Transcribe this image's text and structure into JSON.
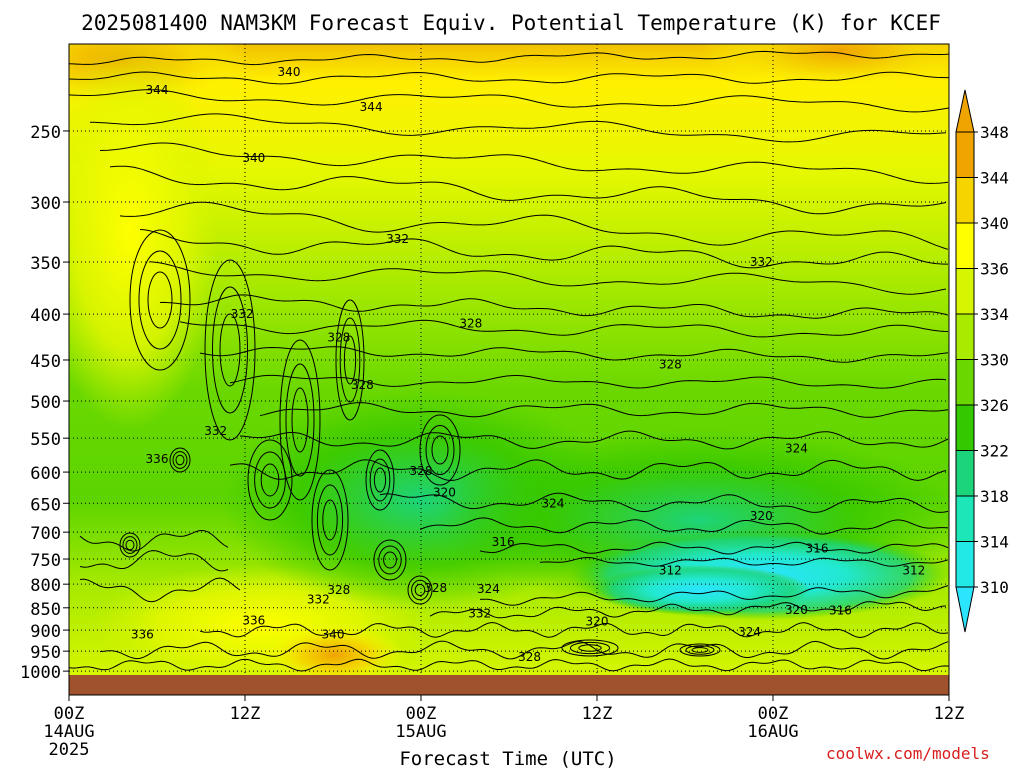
{
  "chart_data": {
    "type": "heatmap",
    "title": "2025081400 NAM3KM Forecast Equiv. Potential Temperature (K) for KCEF",
    "xlabel": "Forecast Time (UTC)",
    "ylabel": "",
    "x_ticks": [
      {
        "hour": 0,
        "label": "00Z",
        "sub": "14AUG",
        "sub2": "2025"
      },
      {
        "hour": 12,
        "label": "12Z",
        "sub": "",
        "sub2": ""
      },
      {
        "hour": 24,
        "label": "00Z",
        "sub": "15AUG",
        "sub2": ""
      },
      {
        "hour": 36,
        "label": "12Z",
        "sub": "",
        "sub2": ""
      },
      {
        "hour": 48,
        "label": "00Z",
        "sub": "16AUG",
        "sub2": ""
      },
      {
        "hour": 60,
        "label": "12Z",
        "sub": "",
        "sub2": ""
      }
    ],
    "y_ticks": [
      "250",
      "300",
      "350",
      "400",
      "450",
      "500",
      "550",
      "600",
      "650",
      "700",
      "750",
      "800",
      "850",
      "900",
      "950",
      "1000"
    ],
    "y_values": [
      250,
      300,
      350,
      400,
      450,
      500,
      550,
      600,
      650,
      700,
      750,
      800,
      850,
      900,
      950,
      1000
    ],
    "xlim": [
      0,
      60
    ],
    "ylim": [
      1010,
      200
    ],
    "colorbar": {
      "labels": [
        "348",
        "344",
        "340",
        "336",
        "334",
        "330",
        "326",
        "322",
        "318",
        "314",
        "310"
      ],
      "colors": [
        "#f0a400",
        "#f5d400",
        "#ffff00",
        "#d6f500",
        "#a8ea00",
        "#6ad800",
        "#34c800",
        "#1cd47a",
        "#1de6b8",
        "#22e8e6",
        "#2be5ff"
      ]
    },
    "surface_color": "#a0522d",
    "contour_labels": [
      {
        "t": "344",
        "x": 6.0,
        "p": 225
      },
      {
        "t": "340",
        "x": 15.0,
        "p": 215
      },
      {
        "t": "344",
        "x": 20.6,
        "p": 235
      },
      {
        "t": "340",
        "x": 12.6,
        "p": 268
      },
      {
        "t": "332",
        "x": 22.4,
        "p": 330
      },
      {
        "t": "332",
        "x": 47.2,
        "p": 350
      },
      {
        "t": "332",
        "x": 11.8,
        "p": 400
      },
      {
        "t": "328",
        "x": 18.4,
        "p": 425
      },
      {
        "t": "328",
        "x": 27.4,
        "p": 410
      },
      {
        "t": "328",
        "x": 41.0,
        "p": 455
      },
      {
        "t": "328",
        "x": 20.0,
        "p": 480
      },
      {
        "t": "332",
        "x": 10.0,
        "p": 540
      },
      {
        "t": "336",
        "x": 6.0,
        "p": 580
      },
      {
        "t": "324",
        "x": 49.6,
        "p": 565
      },
      {
        "t": "328",
        "x": 24.0,
        "p": 598
      },
      {
        "t": "320",
        "x": 25.6,
        "p": 632
      },
      {
        "t": "324",
        "x": 33.0,
        "p": 650
      },
      {
        "t": "320",
        "x": 47.2,
        "p": 672
      },
      {
        "t": "316",
        "x": 29.6,
        "p": 718
      },
      {
        "t": "316",
        "x": 51.0,
        "p": 730
      },
      {
        "t": "312",
        "x": 41.0,
        "p": 772
      },
      {
        "t": "312",
        "x": 57.6,
        "p": 772
      },
      {
        "t": "328",
        "x": 18.4,
        "p": 812
      },
      {
        "t": "328",
        "x": 25.0,
        "p": 808
      },
      {
        "t": "324",
        "x": 28.6,
        "p": 810
      },
      {
        "t": "332",
        "x": 17.0,
        "p": 832
      },
      {
        "t": "332",
        "x": 28.0,
        "p": 862
      },
      {
        "t": "320",
        "x": 49.6,
        "p": 855
      },
      {
        "t": "316",
        "x": 52.6,
        "p": 856
      },
      {
        "t": "320",
        "x": 36.0,
        "p": 880
      },
      {
        "t": "336",
        "x": 12.6,
        "p": 878
      },
      {
        "t": "324",
        "x": 46.4,
        "p": 905
      },
      {
        "t": "340",
        "x": 18.0,
        "p": 910
      },
      {
        "t": "336",
        "x": 5.0,
        "p": 910
      },
      {
        "t": "328",
        "x": 31.4,
        "p": 965
      }
    ]
  },
  "footer": {
    "credit": "coolwx.com/models"
  }
}
